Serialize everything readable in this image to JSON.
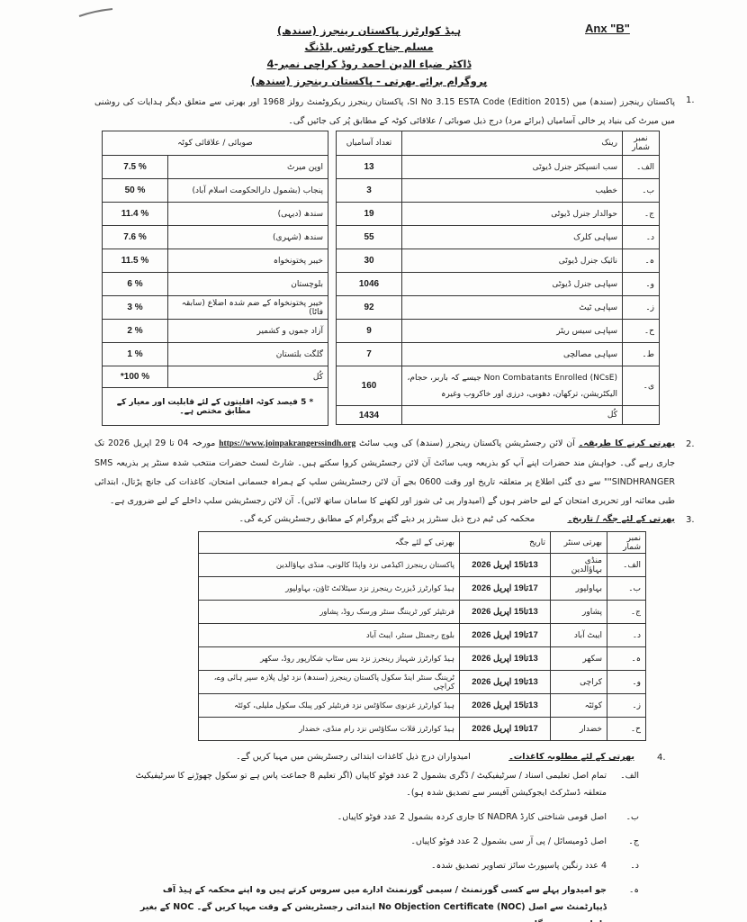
{
  "header": {
    "annex": "Anx \"B\"",
    "line1": "ہیڈ کوارٹرز پاکستان رینجرز (سندھ)",
    "line2": "مسلم جناح کورٹس بلڈنگ",
    "line3": "ڈاکٹر ضیاء الدین احمد روڈ کراچی نمبر-4",
    "line4": "پروگرام برائے بھرتی - پاکستان رینجرز (سندھ)"
  },
  "para1": {
    "num": "1.",
    "text": "پاکستان رینجرز (سندھ) میں SI No 3.15 ESTA Code (Edition 2015)، پاکستان رینجرز ریکروٹمنٹ رولز 1968 اور بھرتی سے متعلق دیگر ہدایات کی روشنی میں میرٹ کی بنیاد پر خالی آسامیاں (برائے مرد) درج ذیل صوبائی / علاقائی کوٹہ کے مطابق پُر کی جائیں گی۔"
  },
  "posts_table": {
    "headers": [
      "نمبر شمار",
      "رینک",
      "تعداد آسامیاں"
    ],
    "rows": [
      {
        "serial": "الف۔",
        "rank": "سب انسپکٹر جنرل ڈیوٹی",
        "count": "13"
      },
      {
        "serial": "ب۔",
        "rank": "خطیب",
        "count": "3"
      },
      {
        "serial": "ج۔",
        "rank": "حوالدار جنرل ڈیوٹی",
        "count": "19"
      },
      {
        "serial": "د۔",
        "rank": "سپاہی کلرک",
        "count": "55"
      },
      {
        "serial": "ہ۔",
        "rank": "نائیک جنرل ڈیوٹی",
        "count": "30"
      },
      {
        "serial": "و۔",
        "rank": "سپاہی جنرل ڈیوٹی",
        "count": "1046"
      },
      {
        "serial": "ز۔",
        "rank": "سپاہی ٹیٹ",
        "count": "92"
      },
      {
        "serial": "ح۔",
        "rank": "سپاہی سیس ریٹر",
        "count": "9"
      },
      {
        "serial": "ط۔",
        "rank": "سپاہی مصالچی",
        "count": "7"
      },
      {
        "serial": "ی۔",
        "rank": "Non Combatants Enrolled (NCsE) جیسے کہ باربر، حجام، الیکٹریشن، ترکھان، دھوبی، درزی اور خاکروب وغیرہ",
        "count": "160"
      }
    ],
    "total_label": "کُل",
    "total": "1434"
  },
  "quota_table": {
    "header": "صوبائی / علاقائی کوٹہ",
    "rows": [
      {
        "region": "اوپن میرٹ",
        "pct": "7.5 %"
      },
      {
        "region": "پنجاب (بشمول دارالحکومت اسلام آباد)",
        "pct": "50 %"
      },
      {
        "region": "سندھ (دیہی)",
        "pct": "11.4 %"
      },
      {
        "region": "سندھ (شہری)",
        "pct": "7.6 %"
      },
      {
        "region": "خیبر پختونخواہ",
        "pct": "11.5 %"
      },
      {
        "region": "بلوچستان",
        "pct": "6 %"
      },
      {
        "region": "خیبر پختونخواہ کے ضم شدہ اضلاع (سابقہ فاٹا)",
        "pct": "3 %"
      },
      {
        "region": "آزاد جموں و کشمیر",
        "pct": "2 %"
      },
      {
        "region": "گلگت بلتستان",
        "pct": "1 %"
      }
    ],
    "total_label": "کُل",
    "total": "*100 %",
    "footnote": "* 5 فیصد کوٹہ اقلیتوں کے لئے قابلیت اور معیار کے مطابق مختص ہے۔"
  },
  "para2": {
    "num": "2.",
    "heading": "بھرتی کرنے کا طریقہ۔",
    "text_a": "آن لائن رجسٹریشن پاکستان رینجرز (سندھ) کی ویب سائٹ",
    "url": "https://www.joinpakrangerssindh.org",
    "text_b": "مورخہ 04 تا 29 اپریل 2026 تک جاری رہے گی۔ خواہش مند حضرات اپنے آپ کو بذریعہ ویب سائٹ آن لائن رجسٹریشن کروا سکتے ہیں۔ شارٹ لسٹ حضرات منتخب شدہ سنٹر پر بذریعہ SMS \"SINDHRANGER\" سے دی گئی اطلاع پر متعلقہ تاریخ اور وقت 0600 بجے آن لائن رجسٹریشن سلپ کے ہمراہ جسمانی امتحان، کاغذات کی جانچ پڑتال، ابتدائی طبی معائنہ اور تحریری امتحان کے لیے حاضر ہوں گے (امیدوار پی ٹی شوز اور لکھنے کا سامان ساتھ لائیں)۔ آن لائن رجسٹریشن سلپ داخلے کے لیے ضروری ہے۔"
  },
  "para3": {
    "num": "3.",
    "heading": "بھرتی کے لئے جگہ / تاریخ۔",
    "text": "محکمہ کی ٹیم درج ذیل سنٹرز پر دیئے گئے پروگرام کے مطابق رجسٹریشن کرے گی۔"
  },
  "centers_table": {
    "headers": [
      "نمبر شمار",
      "بھرتی سنٹر",
      "تاریخ",
      "بھرتی کے لئے جگہ"
    ],
    "rows": [
      {
        "serial": "الف۔",
        "center": "منڈی بہاؤالدین",
        "date": "13تا15 اپریل 2026",
        "place": "پاکستان رینجرز اکیڈمی نزد واپڈا کالونی، منڈی بہاؤالدین"
      },
      {
        "serial": "ب۔",
        "center": "بہاولپور",
        "date": "17تا19 اپریل 2026",
        "place": "ہیڈ کوارٹرز ڈیزرٹ رینجرز نزد سیٹلائٹ ٹاؤن، بہاولپور"
      },
      {
        "serial": "ج۔",
        "center": "پشاور",
        "date": "13تا15 اپریل 2026",
        "place": "فرنٹیئر کور ٹریننگ سنٹر ورسک روڈ، پشاور"
      },
      {
        "serial": "د۔",
        "center": "ایبٹ آباد",
        "date": "17تا19 اپریل 2026",
        "place": "بلوچ رجمنٹل سنٹر، ایبٹ آباد"
      },
      {
        "serial": "ہ۔",
        "center": "سکھر",
        "date": "13تا19 اپریل 2026",
        "place": "ہیڈ کوارٹرز شہباز رینجرز نزد بس سٹاپ شکارپور روڈ، سکھر"
      },
      {
        "serial": "و۔",
        "center": "کراچی",
        "date": "13تا19 اپریل 2026",
        "place": "ٹریننگ سنٹر اینڈ سکول پاکستان رینجرز (سندھ) نزد ٹول پلازہ سپر ہائی وے، کراچی"
      },
      {
        "serial": "ز۔",
        "center": "کوئٹہ",
        "date": "13تا15 اپریل 2026",
        "place": "ہیڈ کوارٹرز غزنوی سکاؤٹس نزد فرنٹیئر کور پبلک سکول ملیلی، کوئٹہ"
      },
      {
        "serial": "ح۔",
        "center": "خضدار",
        "date": "17تا19 اپریل 2026",
        "place": "ہیڈ کوارٹرز قلات سکاؤٹس نزد رام منڈی، خضدار"
      }
    ]
  },
  "para4": {
    "num": "4.",
    "heading": "بھرتی کے لئے مطلوبہ کاغذات۔",
    "text": "امیدواران درج ذیل کاغذات ابتدائی رجسٹریشن میں مہیا کریں گے۔",
    "items": [
      {
        "label": "الف۔",
        "text": "تمام اصل تعلیمی اسناد / سرٹیفیکیٹ / ڈگری بشمول 2 عدد فوٹو کاپیاں (اگر تعلیم 8 جماعت پاس ہے تو سکول چھوڑنے کا سرٹیفیکیٹ متعلقہ ڈسٹرکٹ ایجوکیشن آفیسر سے تصدیق شدہ ہو)۔"
      },
      {
        "label": "ب۔",
        "text": "اصل قومی شناختی کارڈ NADRA کا جاری کردہ بشمول 2 عدد فوٹو کاپیاں۔"
      },
      {
        "label": "ج۔",
        "text": "اصل ڈومیسائل / پی آر سی بشمول 2 عدد فوٹو کاپیاں۔"
      },
      {
        "label": "د۔",
        "text": "4 عدد رنگین پاسپورٹ سائز تصاویر تصدیق شدہ۔"
      },
      {
        "label": "ہ۔",
        "text": "جو امیدوار پہلے سے کسی گورنمنٹ / سیمی گورنمنٹ ادارے میں سروس کرتے ہیں وہ اپنے محکمہ کے ہیڈ آف ڈیپارٹمنٹ سے اصل No Objection Certificate (NOC) ابتدائی رجسٹریشن کے وقت مہیا کریں گے۔ NOC کے بغیر داخلہ ممنوع ہوگا۔"
      }
    ]
  }
}
